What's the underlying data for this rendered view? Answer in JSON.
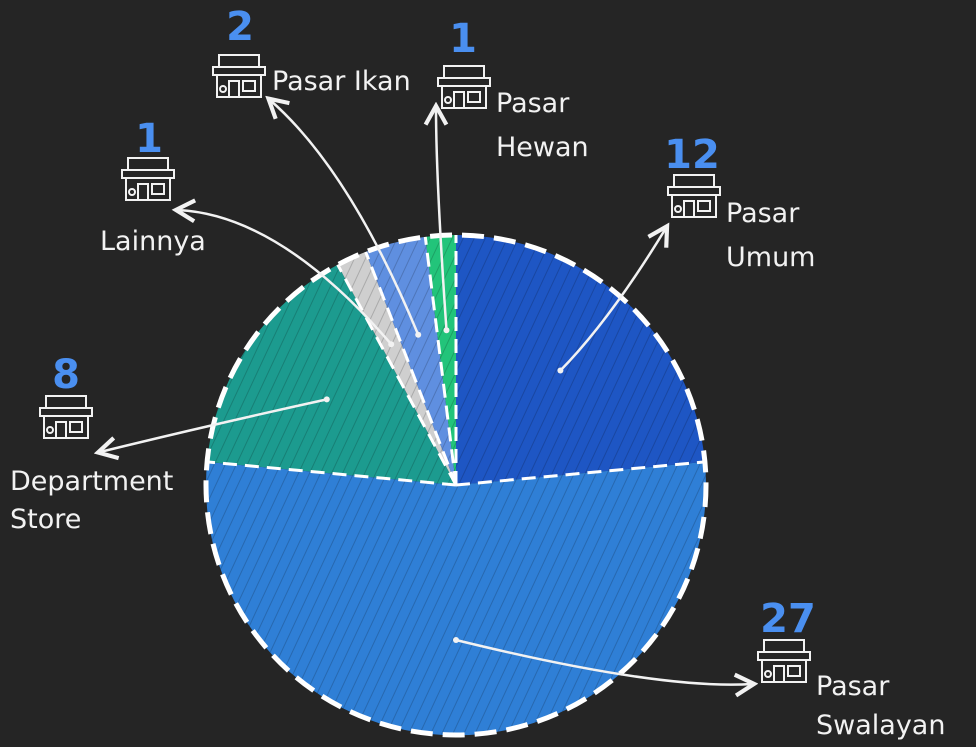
{
  "colors": {
    "background": "#252525",
    "number": "#4a8ff0",
    "text": "#f2f2f2",
    "outline": "#ffffff"
  },
  "icons": {
    "market": "market-building-icon"
  },
  "chart_data": {
    "type": "pie",
    "slices": [
      {
        "label": [
          "Pasar",
          "Umum"
        ],
        "value": 12,
        "color": "#1e56c4"
      },
      {
        "label": [
          "Pasar",
          "Swalayan"
        ],
        "value": 27,
        "color": "#2f7fd6"
      },
      {
        "label": [
          "Department",
          "Store"
        ],
        "value": 8,
        "color": "#1c9b8f"
      },
      {
        "label": [
          "Lainnya"
        ],
        "value": 1,
        "color": "#cfcfcf"
      },
      {
        "label": [
          "Pasar Ikan"
        ],
        "value": 2,
        "color": "#5f8fe0"
      },
      {
        "label": [
          "Pasar",
          "Hewan"
        ],
        "value": 1,
        "color": "#22c47a"
      }
    ]
  }
}
